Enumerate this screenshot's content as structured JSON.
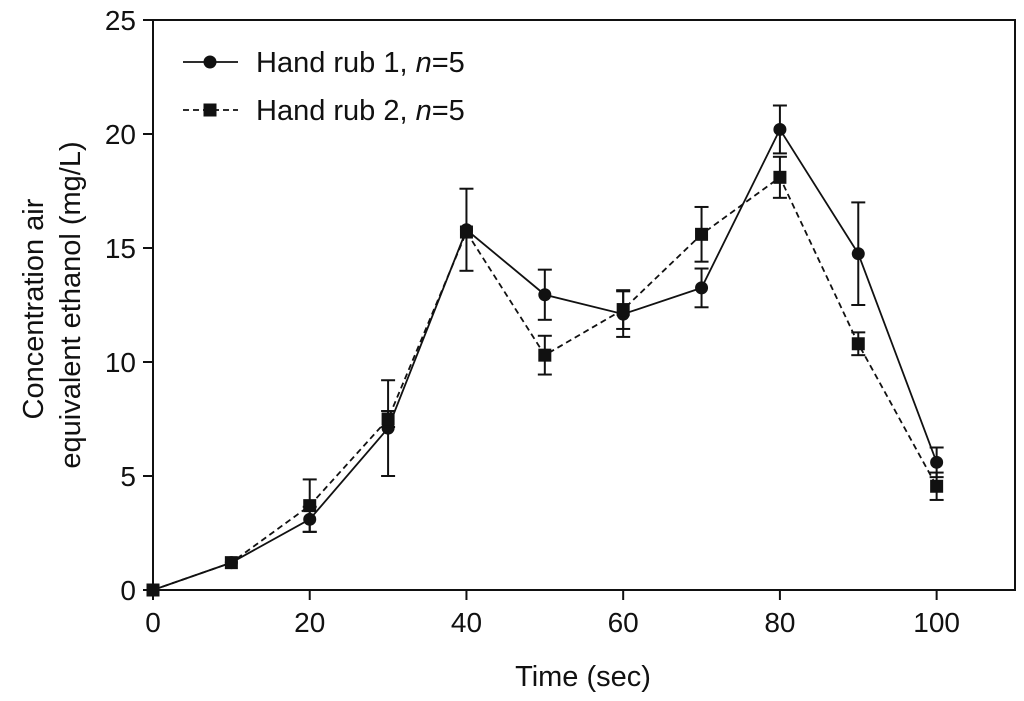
{
  "chart_data": {
    "type": "line",
    "title": "",
    "xlabel": "Time (sec)",
    "ylabel": [
      "Concentration air",
      "equivalent ethanol (mg/L)"
    ],
    "xlim": [
      0,
      110
    ],
    "ylim": [
      0,
      25
    ],
    "x_ticks": [
      0,
      20,
      40,
      60,
      80,
      100
    ],
    "y_ticks": [
      0,
      5,
      10,
      15,
      20,
      25
    ],
    "grid": false,
    "legend_position": "top-left",
    "x": [
      0,
      10,
      20,
      30,
      40,
      50,
      60,
      70,
      80,
      90,
      100
    ],
    "series": [
      {
        "name": "Hand rub 1, ",
        "name_italic": "n",
        "name_suffix": "=5",
        "marker": "circle",
        "line_style": "solid",
        "color": "#111111",
        "values": [
          0,
          1.2,
          3.1,
          7.1,
          15.8,
          12.95,
          12.1,
          13.25,
          20.2,
          14.75,
          5.6
        ],
        "error": [
          0,
          0,
          0.55,
          2.1,
          1.8,
          1.1,
          1.0,
          0.85,
          1.05,
          2.25,
          0.65
        ]
      },
      {
        "name": "Hand rub 2, ",
        "name_italic": "n",
        "name_suffix": "=5",
        "marker": "square",
        "line_style": "dashed",
        "color": "#111111",
        "values": [
          0,
          1.2,
          3.7,
          7.5,
          15.7,
          10.3,
          12.3,
          15.6,
          18.1,
          10.8,
          4.55
        ],
        "error": [
          0,
          0,
          1.15,
          0.35,
          0,
          0.85,
          0.85,
          1.2,
          0.9,
          0.5,
          0.6
        ]
      }
    ]
  }
}
